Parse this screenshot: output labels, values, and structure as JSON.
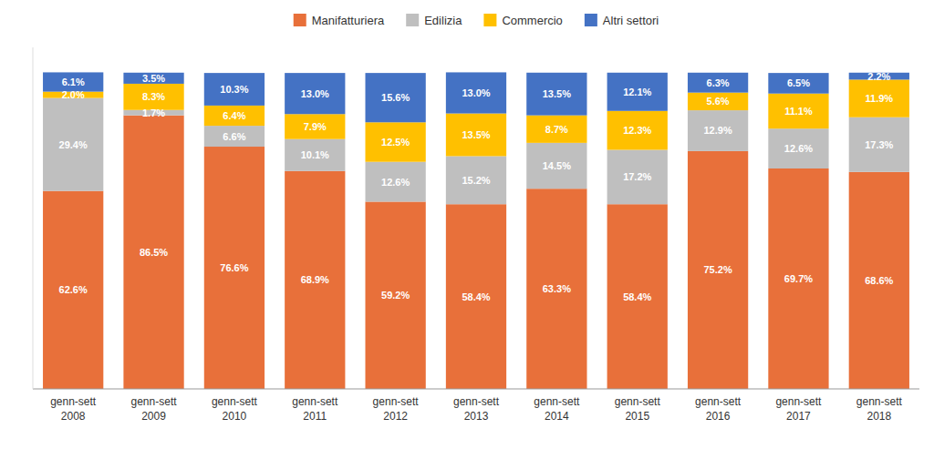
{
  "chart_data": {
    "type": "bar",
    "stacked": true,
    "categories": [
      "genn-sett\n2008",
      "genn-sett\n2009",
      "genn-sett\n2010",
      "genn-sett\n2011",
      "genn-sett\n2012",
      "genn-sett\n2013",
      "genn-sett\n2014",
      "genn-sett\n2015",
      "genn-sett\n2016",
      "genn-sett\n2017",
      "genn-sett\n2018"
    ],
    "series": [
      {
        "name": "Manifatturiera",
        "color": "#E8703A",
        "values": [
          62.6,
          86.5,
          76.6,
          68.9,
          59.2,
          58.4,
          63.3,
          58.4,
          75.2,
          69.7,
          68.6
        ],
        "value_labels": [
          "62.6%",
          "86.5%",
          "76.6%",
          "68.9%",
          "59.2%",
          "58.4%",
          "63.3%",
          "58.4%",
          "75.2%",
          "69.7%",
          "68.6%"
        ]
      },
      {
        "name": "Edilizia",
        "color": "#BFBFBF",
        "values": [
          29.4,
          1.7,
          6.6,
          10.1,
          12.6,
          15.2,
          14.5,
          17.2,
          12.9,
          12.6,
          17.3
        ],
        "value_labels": [
          "29.4%",
          "1.7%",
          "6.6%",
          "10.1%",
          "12.6%",
          "15.2%",
          "14.5%",
          "17.2%",
          "12.9%",
          "12.6%",
          "17.3%"
        ]
      },
      {
        "name": "Commercio",
        "color": "#FFC000",
        "values": [
          2.0,
          8.3,
          6.4,
          7.9,
          12.5,
          13.5,
          8.7,
          12.3,
          5.6,
          11.1,
          11.9
        ],
        "value_labels": [
          "2.0%",
          "8.3%",
          "6.4%",
          "7.9%",
          "12.5%",
          "13.5%",
          "8.7%",
          "12.3%",
          "5.6%",
          "11.1%",
          "11.9%"
        ]
      },
      {
        "name": "Altri settori",
        "color": "#4472C4",
        "values": [
          6.1,
          3.5,
          10.3,
          13.0,
          15.6,
          13.0,
          13.5,
          12.1,
          6.3,
          6.5,
          2.2
        ],
        "value_labels": [
          "6.1%",
          "3.5%",
          "10.3%",
          "13.0%",
          "15.6%",
          "13.0%",
          "13.5%",
          "12.1%",
          "6.3%",
          "6.5%",
          "2.2%"
        ]
      }
    ],
    "ylim": [
      0,
      108
    ],
    "data_labels": true,
    "legend": "top",
    "grid": false,
    "tick_labels": "x"
  }
}
